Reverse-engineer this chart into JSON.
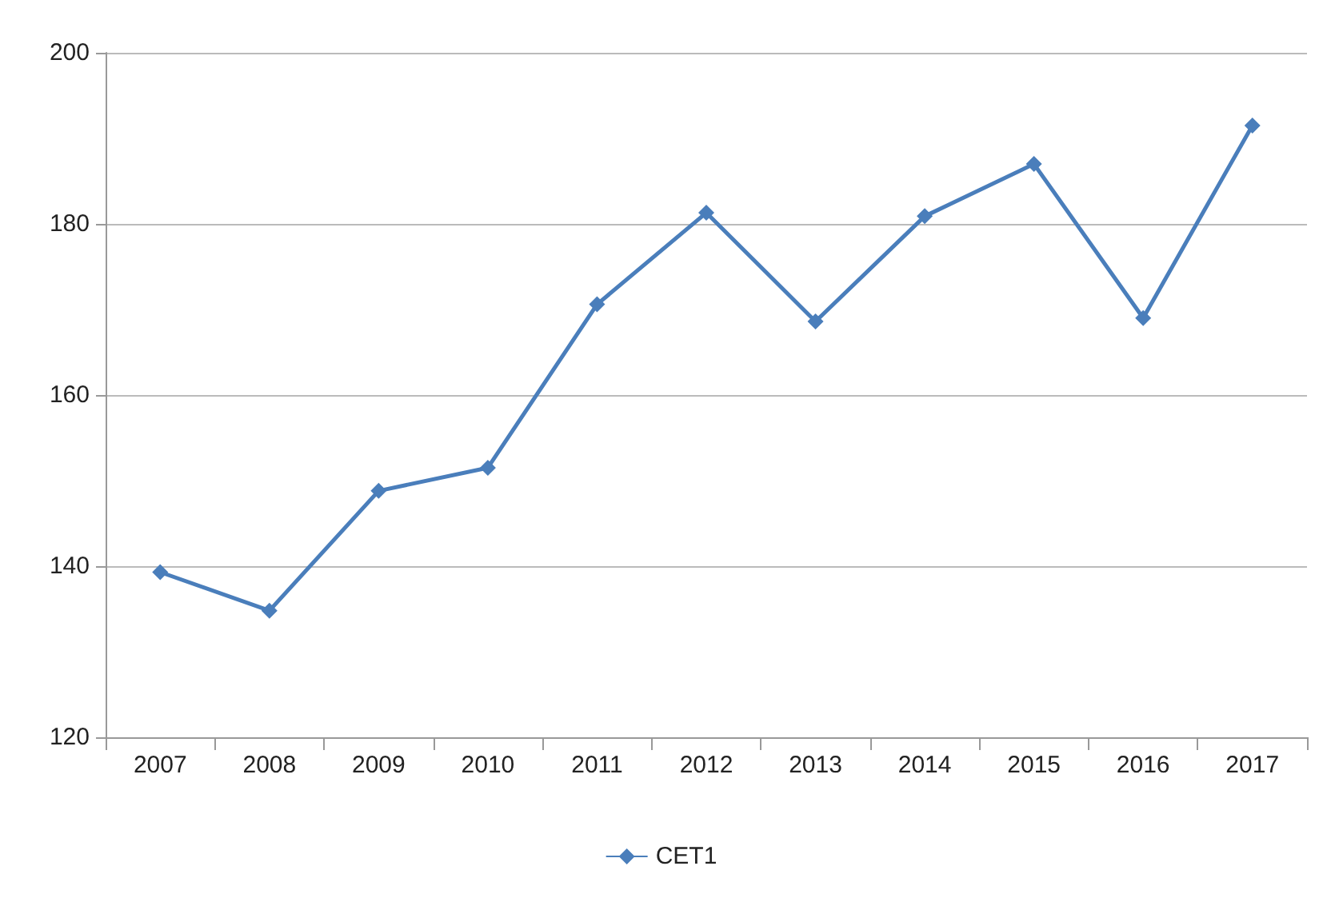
{
  "chart_data": {
    "type": "line",
    "categories": [
      "2007",
      "2008",
      "2009",
      "2010",
      "2011",
      "2012",
      "2013",
      "2014",
      "2015",
      "2016",
      "2017"
    ],
    "series": [
      {
        "name": "CET1",
        "color": "#4a7ebb",
        "values": [
          139.3,
          134.8,
          148.8,
          151.5,
          170.6,
          181.3,
          168.6,
          180.9,
          187,
          169,
          191.5
        ]
      }
    ],
    "ylim": [
      120,
      200
    ],
    "yticks": [
      120,
      140,
      160,
      180,
      200
    ],
    "grid": "y",
    "legend": "bottom",
    "marker": "diamond",
    "line_style": "solid"
  }
}
